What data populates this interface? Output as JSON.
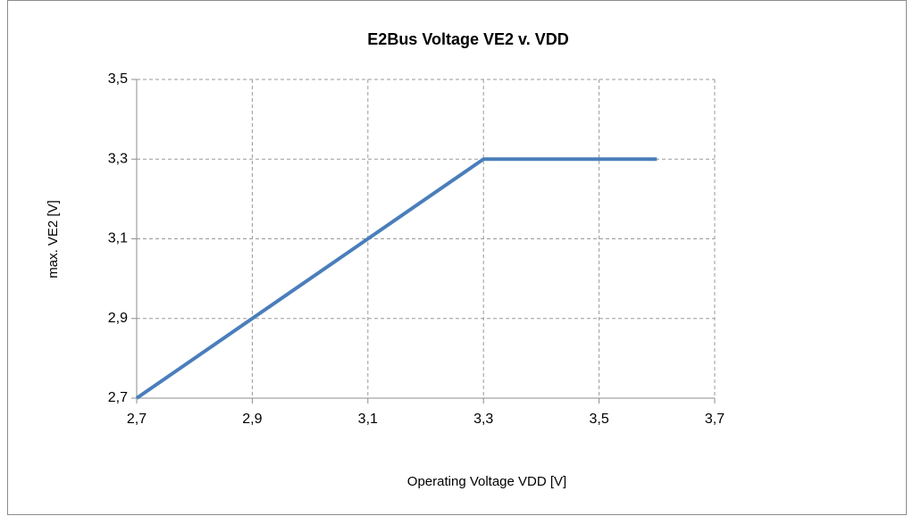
{
  "chart_data": {
    "type": "line",
    "title": "E2Bus Voltage VE2 v. VDD",
    "x_label": "Operating Voltage VDD [V]",
    "y_label": "max. VE2 [V]",
    "x": [
      2.7,
      3.3,
      3.6
    ],
    "series": [
      {
        "color": "#4a7ebb",
        "values": [
          2.7,
          3.3,
          3.3
        ]
      }
    ],
    "xlim": [
      2.7,
      3.7
    ],
    "xticks": [
      {
        "value": 2.7,
        "label": "2,7"
      },
      {
        "value": 2.9,
        "label": "2,9"
      },
      {
        "value": 3.1,
        "label": "3,1"
      },
      {
        "value": 3.3,
        "label": "3,3"
      },
      {
        "value": 3.5,
        "label": "3,5"
      },
      {
        "value": 3.7,
        "label": "3,7"
      }
    ],
    "ylim": [
      2.7,
      3.5
    ],
    "yticks": [
      {
        "value": 2.7,
        "label": "2,7"
      },
      {
        "value": 2.9,
        "label": "2,9"
      },
      {
        "value": 3.1,
        "label": "3,1"
      },
      {
        "value": 3.3,
        "label": "3,3"
      },
      {
        "value": 3.5,
        "label": "3,5"
      }
    ],
    "grid": true
  }
}
